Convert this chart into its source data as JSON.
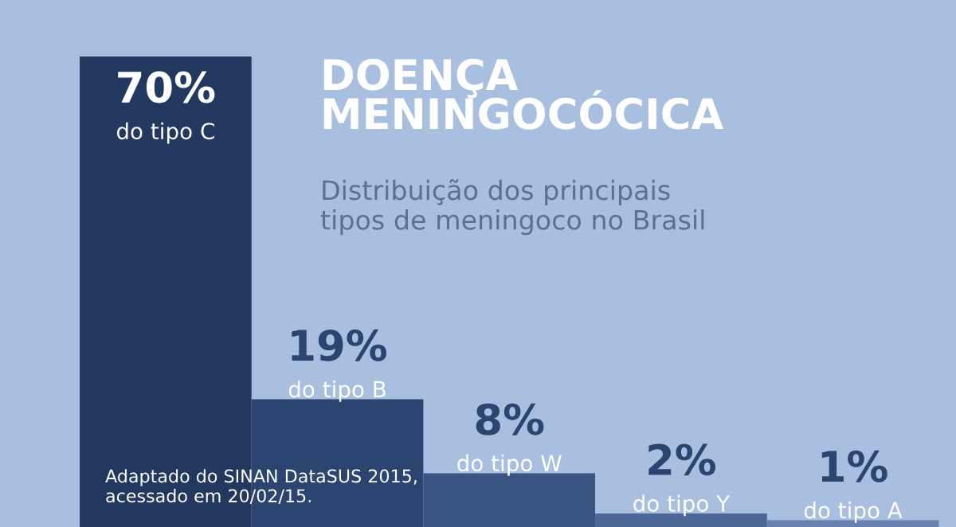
{
  "chart_data": {
    "type": "bar",
    "title": "DOENÇA\nMENINGOCÓCICA",
    "subtitle": "Distribuição dos principais\ntipos de meningoco no Brasil",
    "categories": [
      "do tipo C",
      "do tipo B",
      "do tipo W",
      "do tipo Y",
      "do tipo A"
    ],
    "values": [
      70,
      19,
      8,
      2,
      1
    ],
    "value_labels": [
      "70%",
      "19%",
      "8%",
      "2%",
      "1%"
    ],
    "colors": [
      "#23385e",
      "#2c4470",
      "#3a5482",
      "#4d6897",
      "#6780ad"
    ],
    "annotations": [
      "Adaptado do SINAN DataSUS 2015,\nacessado em 20/02/15."
    ]
  }
}
